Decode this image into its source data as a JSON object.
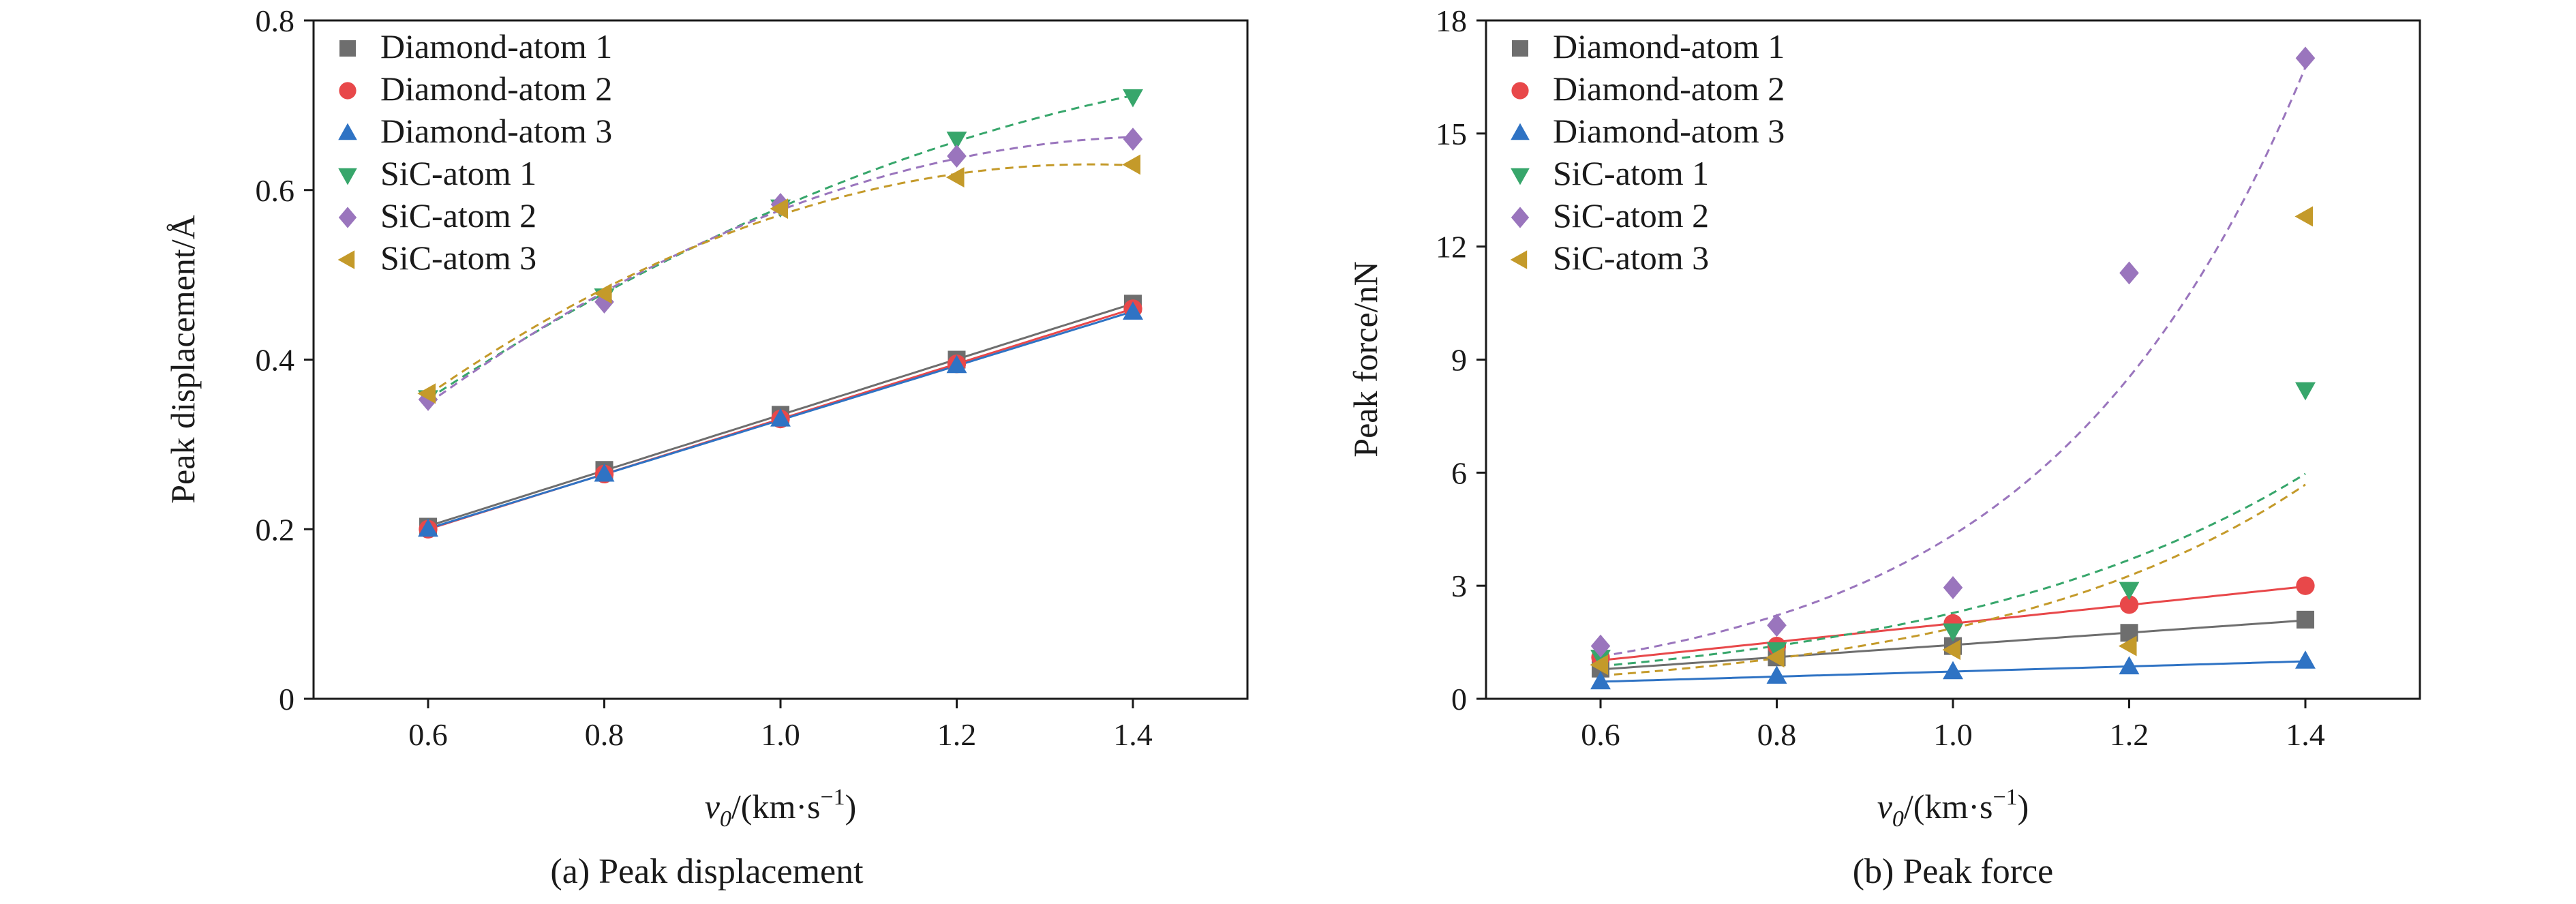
{
  "chart_data": [
    {
      "type": "scatter",
      "caption": "(a) Peak displacement",
      "ylabel": "Peak displacement/Å",
      "xlabel": {
        "main": "v",
        "sub": "0",
        "unit_pre": "/(km·s",
        "sup": "−1",
        "unit_post": ")"
      },
      "x": [
        0.6,
        0.8,
        1.0,
        1.2,
        1.4
      ],
      "xlim": [
        0.47,
        1.53
      ],
      "ylim": [
        0,
        0.8
      ],
      "xticks": [
        "0.6",
        "0.8",
        "1.0",
        "1.2",
        "1.4"
      ],
      "yticks": [
        "0",
        "0.2",
        "0.4",
        "0.6",
        "0.8"
      ],
      "legend_position": "top-left",
      "series": [
        {
          "name": "Diamond-atom 1",
          "marker": "square",
          "color": "#6e6e6e",
          "fit": "solid",
          "values": [
            0.203,
            0.27,
            0.335,
            0.4,
            0.466
          ]
        },
        {
          "name": "Diamond-atom 2",
          "marker": "circle",
          "color": "#e8484a",
          "fit": "solid",
          "values": [
            0.2,
            0.265,
            0.33,
            0.395,
            0.46
          ]
        },
        {
          "name": "Diamond-atom 3",
          "marker": "triangle-up",
          "color": "#2f73c4",
          "fit": "solid",
          "values": [
            0.2,
            0.265,
            0.33,
            0.393,
            0.456
          ]
        },
        {
          "name": "SiC-atom 1",
          "marker": "triangle-down",
          "color": "#37a66b",
          "fit": "dashed",
          "values": [
            0.355,
            0.475,
            0.58,
            0.66,
            0.71
          ]
        },
        {
          "name": "SiC-atom 2",
          "marker": "diamond",
          "color": "#9a75bd",
          "fit": "dashed",
          "values": [
            0.353,
            0.468,
            0.583,
            0.64,
            0.66
          ]
        },
        {
          "name": "SiC-atom 3",
          "marker": "triangle-left",
          "color": "#c49a2a",
          "fit": "dashed",
          "values": [
            0.36,
            0.478,
            0.578,
            0.615,
            0.63
          ]
        }
      ]
    },
    {
      "type": "scatter",
      "caption": "(b) Peak force",
      "ylabel": "Peak force/nN",
      "xlabel": {
        "main": "v",
        "sub": "0",
        "unit_pre": "/(km·s",
        "sup": "−1",
        "unit_post": ")"
      },
      "x": [
        0.6,
        0.8,
        1.0,
        1.2,
        1.4
      ],
      "xlim": [
        0.47,
        1.53
      ],
      "ylim": [
        0,
        18
      ],
      "xticks": [
        "0.6",
        "0.8",
        "1.0",
        "1.2",
        "1.4"
      ],
      "yticks": [
        "0",
        "3",
        "6",
        "9",
        "12",
        "15",
        "18"
      ],
      "legend_position": "top-left",
      "series": [
        {
          "name": "Diamond-atom 1",
          "marker": "square",
          "color": "#6e6e6e",
          "fit": "solid",
          "values": [
            0.8,
            1.1,
            1.4,
            1.75,
            2.1
          ]
        },
        {
          "name": "Diamond-atom 2",
          "marker": "circle",
          "color": "#e8484a",
          "fit": "solid",
          "values": [
            1.1,
            1.4,
            2.0,
            2.5,
            3.0
          ]
        },
        {
          "name": "Diamond-atom 3",
          "marker": "triangle-up",
          "color": "#2f73c4",
          "fit": "solid",
          "values": [
            0.45,
            0.6,
            0.72,
            0.85,
            1.0
          ]
        },
        {
          "name": "SiC-atom 1",
          "marker": "triangle-down",
          "color": "#37a66b",
          "fit": "dashed",
          "values": [
            1.1,
            1.3,
            1.8,
            2.9,
            8.2
          ]
        },
        {
          "name": "SiC-atom 2",
          "marker": "diamond",
          "color": "#9a75bd",
          "fit": "dashed",
          "values": [
            1.4,
            1.95,
            2.95,
            11.3,
            17.0
          ]
        },
        {
          "name": "SiC-atom 3",
          "marker": "triangle-left",
          "color": "#c49a2a",
          "fit": "dashed",
          "values": [
            0.9,
            1.1,
            1.3,
            1.4,
            12.8
          ]
        }
      ]
    }
  ]
}
